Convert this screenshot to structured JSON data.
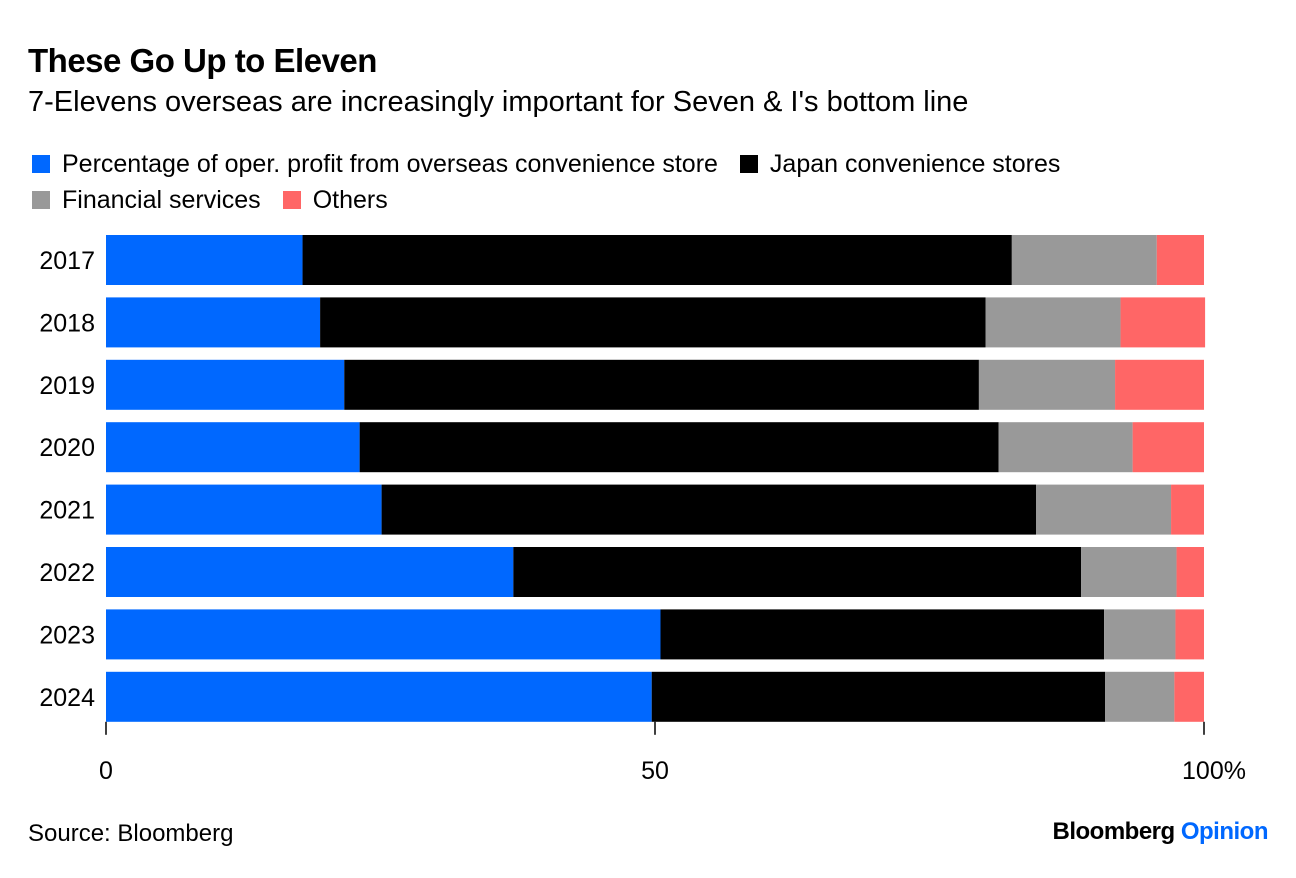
{
  "title": "These Go Up to Eleven",
  "subtitle": "7-Elevens overseas are increasingly important for Seven & I's bottom line",
  "source": "Source: Bloomberg",
  "logo": {
    "brand": "Bloomberg",
    "section": "Opinion"
  },
  "chart_data": {
    "type": "bar",
    "orientation": "horizontal",
    "stacked": true,
    "categories": [
      "2017",
      "2018",
      "2019",
      "2020",
      "2021",
      "2022",
      "2023",
      "2024"
    ],
    "series": [
      {
        "name": "Percentage of oper. profit from overseas convenience store",
        "color": "#0068ff",
        "values": [
          17.9,
          19.5,
          21.7,
          23.1,
          25.1,
          37.1,
          50.5,
          49.7
        ]
      },
      {
        "name": "Japan convenience stores",
        "color": "#000000",
        "values": [
          64.6,
          60.6,
          57.8,
          58.2,
          59.6,
          51.7,
          40.4,
          41.3
        ]
      },
      {
        "name": "Financial services",
        "color": "#999999",
        "values": [
          13.2,
          12.3,
          12.4,
          12.2,
          12.3,
          8.7,
          6.5,
          6.3
        ]
      },
      {
        "name": "Others",
        "color": "#ff6666",
        "values": [
          4.3,
          7.7,
          8.1,
          6.5,
          3.0,
          2.5,
          2.6,
          2.7
        ]
      }
    ],
    "xlim": [
      0,
      100
    ],
    "xticks": [
      "0",
      "50",
      "100%"
    ],
    "legend": "top",
    "grid": false
  }
}
